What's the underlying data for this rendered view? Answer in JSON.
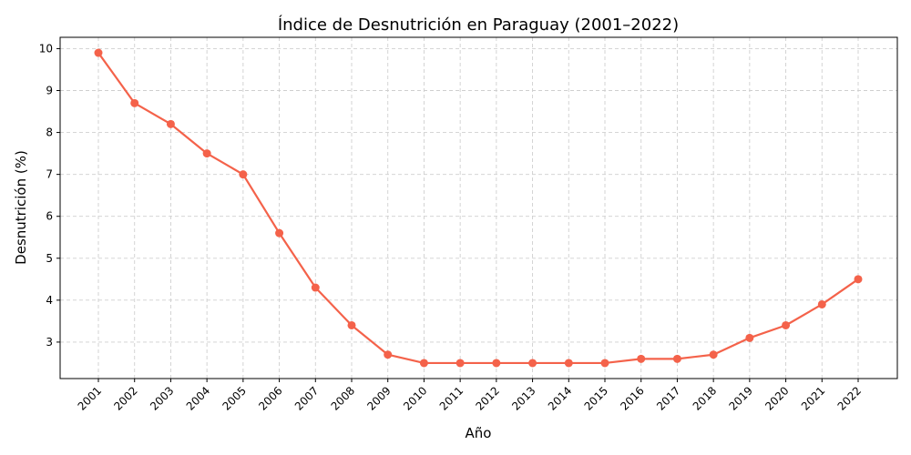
{
  "chart_data": {
    "type": "line",
    "title": "Índice de Desnutrición en Paraguay (2001–2022)",
    "xlabel": "Año",
    "ylabel": "Desnutrición (%)",
    "x": [
      "2001",
      "2002",
      "2003",
      "2004",
      "2005",
      "2006",
      "2007",
      "2008",
      "2009",
      "2010",
      "2011",
      "2012",
      "2013",
      "2014",
      "2015",
      "2016",
      "2017",
      "2018",
      "2019",
      "2020",
      "2021",
      "2022"
    ],
    "series": [
      {
        "values": [
          9.9,
          8.7,
          8.2,
          7.5,
          7.0,
          5.6,
          4.3,
          3.4,
          2.7,
          2.5,
          2.5,
          2.5,
          2.5,
          2.5,
          2.5,
          2.6,
          2.6,
          2.7,
          3.1,
          3.4,
          3.9,
          4.5
        ],
        "color": "#f4624a"
      }
    ],
    "yticks": [
      3,
      4,
      5,
      6,
      7,
      8,
      9,
      10
    ],
    "ylim": [
      2.13,
      10.27
    ],
    "grid": true,
    "x_tick_rotation": 45
  }
}
